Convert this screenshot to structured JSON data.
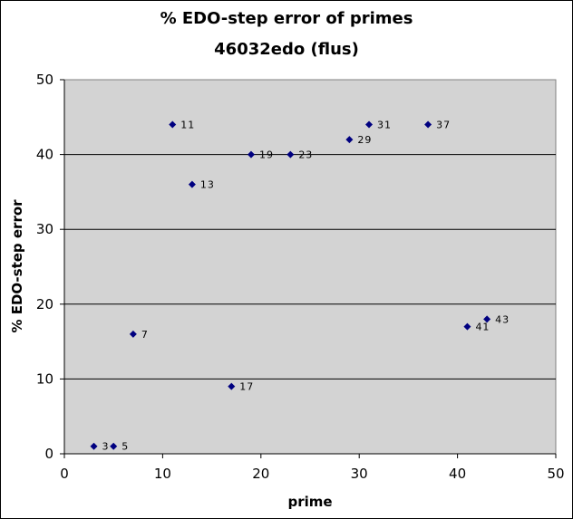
{
  "chart_data": {
    "type": "scatter",
    "title": "% EDO-step error of primes",
    "subtitle": "46032edo (flus)",
    "xlabel": "prime",
    "ylabel": "% EDO-step error",
    "xlim": [
      0,
      50
    ],
    "ylim": [
      0,
      50
    ],
    "x_ticks": [
      "0",
      "10",
      "20",
      "30",
      "40",
      "50"
    ],
    "y_ticks": [
      "0",
      "10",
      "20",
      "30",
      "40",
      "50"
    ],
    "grid": "horizontal",
    "legend": "none",
    "colors": {
      "plot_bg": "#d3d3d3",
      "marker": "#000080",
      "grid": "#000000"
    },
    "points": [
      {
        "x": 3,
        "y": 1,
        "label": "3"
      },
      {
        "x": 5,
        "y": 1,
        "label": "5"
      },
      {
        "x": 7,
        "y": 16,
        "label": "7"
      },
      {
        "x": 11,
        "y": 44,
        "label": "11"
      },
      {
        "x": 13,
        "y": 36,
        "label": "13"
      },
      {
        "x": 17,
        "y": 9,
        "label": "17"
      },
      {
        "x": 19,
        "y": 40,
        "label": "19"
      },
      {
        "x": 23,
        "y": 40,
        "label": "23"
      },
      {
        "x": 29,
        "y": 42,
        "label": "29"
      },
      {
        "x": 31,
        "y": 44,
        "label": "31"
      },
      {
        "x": 37,
        "y": 44,
        "label": "37"
      },
      {
        "x": 41,
        "y": 17,
        "label": "41"
      },
      {
        "x": 43,
        "y": 18,
        "label": "43"
      }
    ]
  }
}
